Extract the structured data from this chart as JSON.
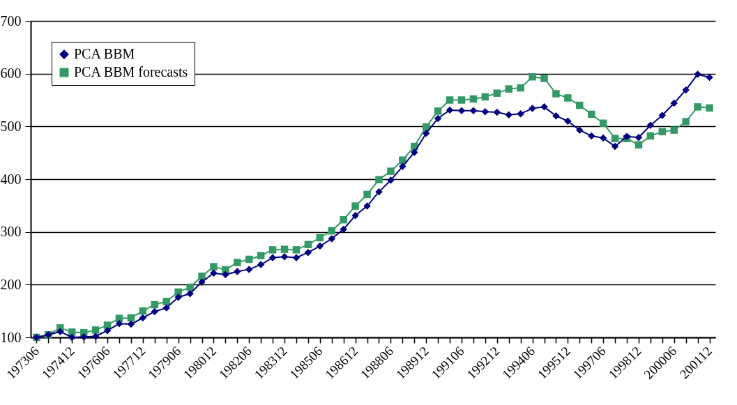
{
  "chart_data": {
    "type": "line",
    "categories": [
      "197306",
      null,
      null,
      "197412",
      null,
      null,
      "197606",
      null,
      null,
      "197712",
      null,
      null,
      "197906",
      null,
      null,
      "198012",
      null,
      null,
      "198206",
      null,
      null,
      "198312",
      null,
      null,
      "198506",
      null,
      null,
      "198612",
      null,
      null,
      "198806",
      null,
      null,
      "198912",
      null,
      null,
      "199106",
      null,
      null,
      "199212",
      null,
      null,
      "199406",
      null,
      null,
      "199512",
      null,
      null,
      "199706",
      null,
      null,
      "199812",
      null,
      null,
      "200006",
      null,
      null,
      "200112"
    ],
    "series": [
      {
        "name": "PCA BBM",
        "color": "#000080",
        "marker": "diamond",
        "values": [
          100,
          105,
          111,
          100,
          101,
          102,
          113,
          126,
          125,
          137,
          149,
          156,
          176,
          183,
          205,
          222,
          219,
          225,
          229,
          238,
          251,
          253,
          251,
          261,
          273,
          287,
          305,
          331,
          349,
          376,
          398,
          424,
          451,
          487,
          515,
          531,
          530,
          530,
          528,
          527,
          522,
          524,
          534,
          537,
          520,
          510,
          493,
          482,
          478,
          462,
          481,
          479,
          502,
          521,
          544,
          569,
          599,
          593
        ]
      },
      {
        "name": "PCA BBM forecasts",
        "color": "#339966",
        "marker": "square",
        "values": [
          100,
          105,
          118,
          110,
          109,
          114,
          123,
          136,
          137,
          150,
          162,
          168,
          186,
          195,
          216,
          234,
          228,
          242,
          248,
          255,
          266,
          267,
          266,
          276,
          289,
          302,
          323,
          349,
          371,
          399,
          415,
          436,
          462,
          499,
          529,
          550,
          550,
          552,
          556,
          563,
          571,
          573,
          594,
          591,
          562,
          554,
          540,
          523,
          506,
          477,
          477,
          465,
          482,
          490,
          493,
          509,
          537,
          535
        ]
      }
    ],
    "ylim": [
      100,
      700
    ],
    "yticks": [
      100,
      200,
      300,
      400,
      500,
      600,
      700
    ],
    "grid": "y",
    "legend": "top left",
    "line_style": "solid"
  }
}
